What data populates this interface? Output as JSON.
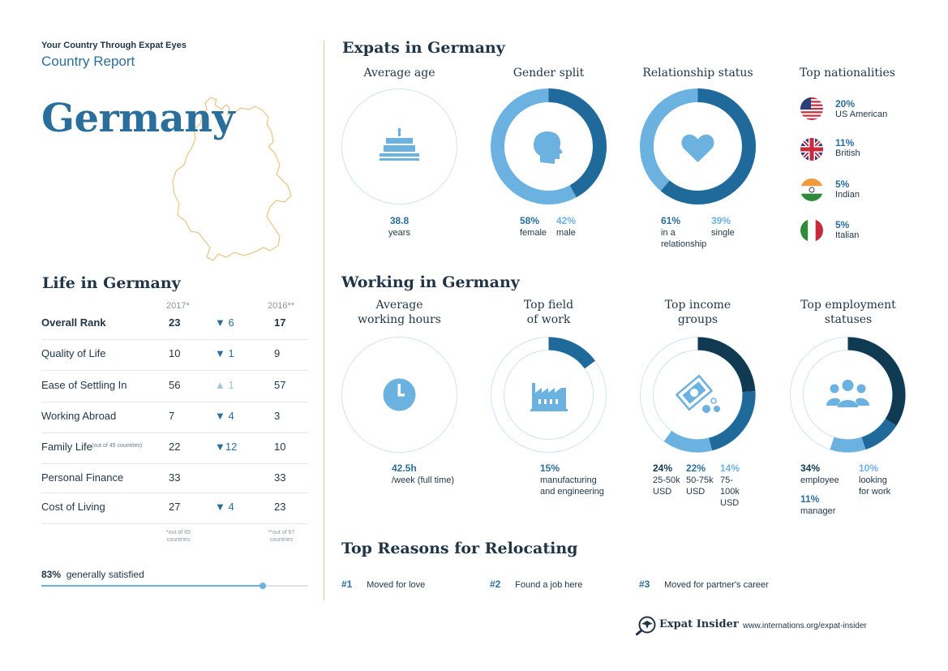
{
  "header": {
    "tagline": "Your Country Through Expat Eyes",
    "subtitle": "Country Report",
    "country": "Germany"
  },
  "life": {
    "title": "Life in Germany",
    "col_2017": "2017*",
    "col_2016": "2016**",
    "rows": [
      {
        "label": "Overall Rank",
        "note": "",
        "v2017": "23",
        "change": "▼ 6",
        "dir": "down",
        "v2016": "17",
        "bold": true
      },
      {
        "label": "Quality of Life",
        "note": "",
        "v2017": "10",
        "change": "▼ 1",
        "dir": "down",
        "v2016": "9",
        "bold": false
      },
      {
        "label": "Ease of Settling In",
        "note": "",
        "v2017": "56",
        "change": "▲ 1",
        "dir": "up",
        "v2016": "57",
        "bold": false
      },
      {
        "label": "Working Abroad",
        "note": "",
        "v2017": "7",
        "change": "▼ 4",
        "dir": "down",
        "v2016": "3",
        "bold": false
      },
      {
        "label": "Family Life",
        "note": "(out of 45 countries)",
        "v2017": "22",
        "change": "▼12",
        "dir": "down",
        "v2016": "10",
        "bold": false
      },
      {
        "label": "Personal Finance",
        "note": "",
        "v2017": "33",
        "change": "",
        "dir": "",
        "v2016": "33",
        "bold": false
      },
      {
        "label": "Cost of Living",
        "note": "",
        "v2017": "27",
        "change": "▼ 4",
        "dir": "down",
        "v2016": "23",
        "bold": false
      }
    ],
    "footnote_2017_a": "*out of 65",
    "footnote_2017_b": "countries",
    "footnote_2016_a": "**out of 67",
    "footnote_2016_b": "countries",
    "satisfied_pct": "83%",
    "satisfied_label": "generally satisfied",
    "satisfied_value": 0.83
  },
  "expats": {
    "title": "Expats in Germany",
    "age": {
      "title": "Average age",
      "value": "38.8",
      "unit": "years"
    },
    "gender": {
      "title": "Gender split",
      "female_pct": "58%",
      "female": "female",
      "male_pct": "42%",
      "male": "male",
      "female_value": 58,
      "male_value": 42
    },
    "relationship": {
      "title": "Relationship status",
      "rel_pct": "61%",
      "rel_line1": "in a",
      "rel_line2": "relationship",
      "single_pct": "39%",
      "single": "single",
      "rel_value": 61,
      "single_value": 39
    },
    "nationalities": {
      "title": "Top nationalities",
      "items": [
        {
          "pct": "20%",
          "name": "US American",
          "flag": "us-flag-icon"
        },
        {
          "pct": "11%",
          "name": "British",
          "flag": "uk-flag-icon"
        },
        {
          "pct": "5%",
          "name": "Indian",
          "flag": "india-flag-icon"
        },
        {
          "pct": "5%",
          "name": "Italian",
          "flag": "italy-flag-icon"
        }
      ]
    }
  },
  "working": {
    "title": "Working in Germany",
    "hours": {
      "title1": "Average",
      "title2": "working hours",
      "value": "42.5h",
      "unit": "/week (full time)"
    },
    "field": {
      "title1": "Top field",
      "title2": "of work",
      "pct": "15%",
      "line1": "manufacturing",
      "line2": "and engineering",
      "value": 15
    },
    "income": {
      "title1": "Top income",
      "title2": "groups",
      "groups": [
        {
          "pct": "24%",
          "line1": "25-50k",
          "line2": "USD",
          "line3": "",
          "value": 24
        },
        {
          "pct": "22%",
          "line1": "50-75k",
          "line2": "USD",
          "line3": "",
          "value": 22
        },
        {
          "pct": "14%",
          "line1": "75-",
          "line2": "100k",
          "line3": "USD",
          "value": 14
        }
      ]
    },
    "employment": {
      "title1": "Top employment",
      "title2": "statuses",
      "items": [
        {
          "pct": "34%",
          "label1": "employee",
          "label2": "",
          "value": 34
        },
        {
          "pct": "11%",
          "label1": "manager",
          "label2": "",
          "value": 11
        },
        {
          "pct": "10%",
          "label1": "looking",
          "label2": "for work",
          "value": 10
        }
      ]
    }
  },
  "reasons": {
    "title": "Top Reasons for Relocating",
    "items": [
      {
        "num": "#1",
        "text": "Moved for love"
      },
      {
        "num": "#2",
        "text": "Found a job here"
      },
      {
        "num": "#3",
        "text": "Moved for partner's career"
      }
    ]
  },
  "footer": {
    "brand": "Expat Insider",
    "url": "www.internations.org/expat-insider"
  },
  "colors": {
    "dark": "#0f3a52",
    "mid": "#1f6a9a",
    "light": "#6cb2e0",
    "accent": "#e8c98a"
  }
}
